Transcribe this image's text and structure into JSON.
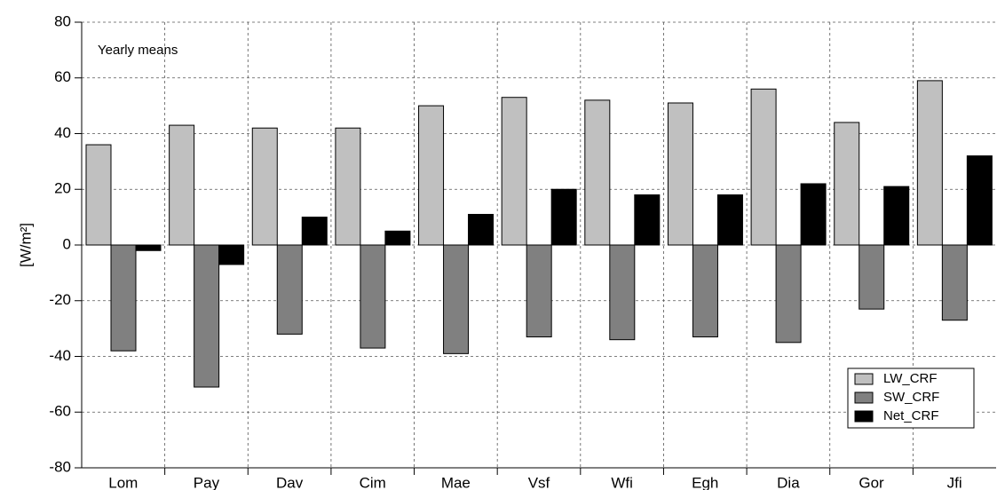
{
  "chart_data": {
    "type": "bar",
    "y_label": "[W/m²]",
    "annotation": "Yearly means",
    "categories": [
      "Lom",
      "Pay",
      "Dav",
      "Cim",
      "Mae",
      "Vsf",
      "Wfi",
      "Egh",
      "Dia",
      "Gor",
      "Jfi"
    ],
    "series": [
      {
        "name": "LW_CRF",
        "color": "#c0c0c0",
        "values": [
          36,
          43,
          42,
          42,
          50,
          53,
          52,
          51,
          56,
          44,
          59
        ]
      },
      {
        "name": "SW_CRF",
        "color": "#808080",
        "values": [
          -38,
          -51,
          -32,
          -37,
          -39,
          -33,
          -34,
          -33,
          -35,
          -23,
          -27
        ]
      },
      {
        "name": "Net_CRF",
        "color": "#000000",
        "values": [
          -2,
          -7,
          10,
          5,
          11,
          20,
          18,
          18,
          22,
          21,
          32
        ]
      }
    ],
    "ylim": [
      -80,
      80
    ],
    "yticks": [
      -80,
      -60,
      -40,
      -20,
      0,
      20,
      40,
      60,
      80
    ],
    "grid": true,
    "legend": "lower right"
  }
}
